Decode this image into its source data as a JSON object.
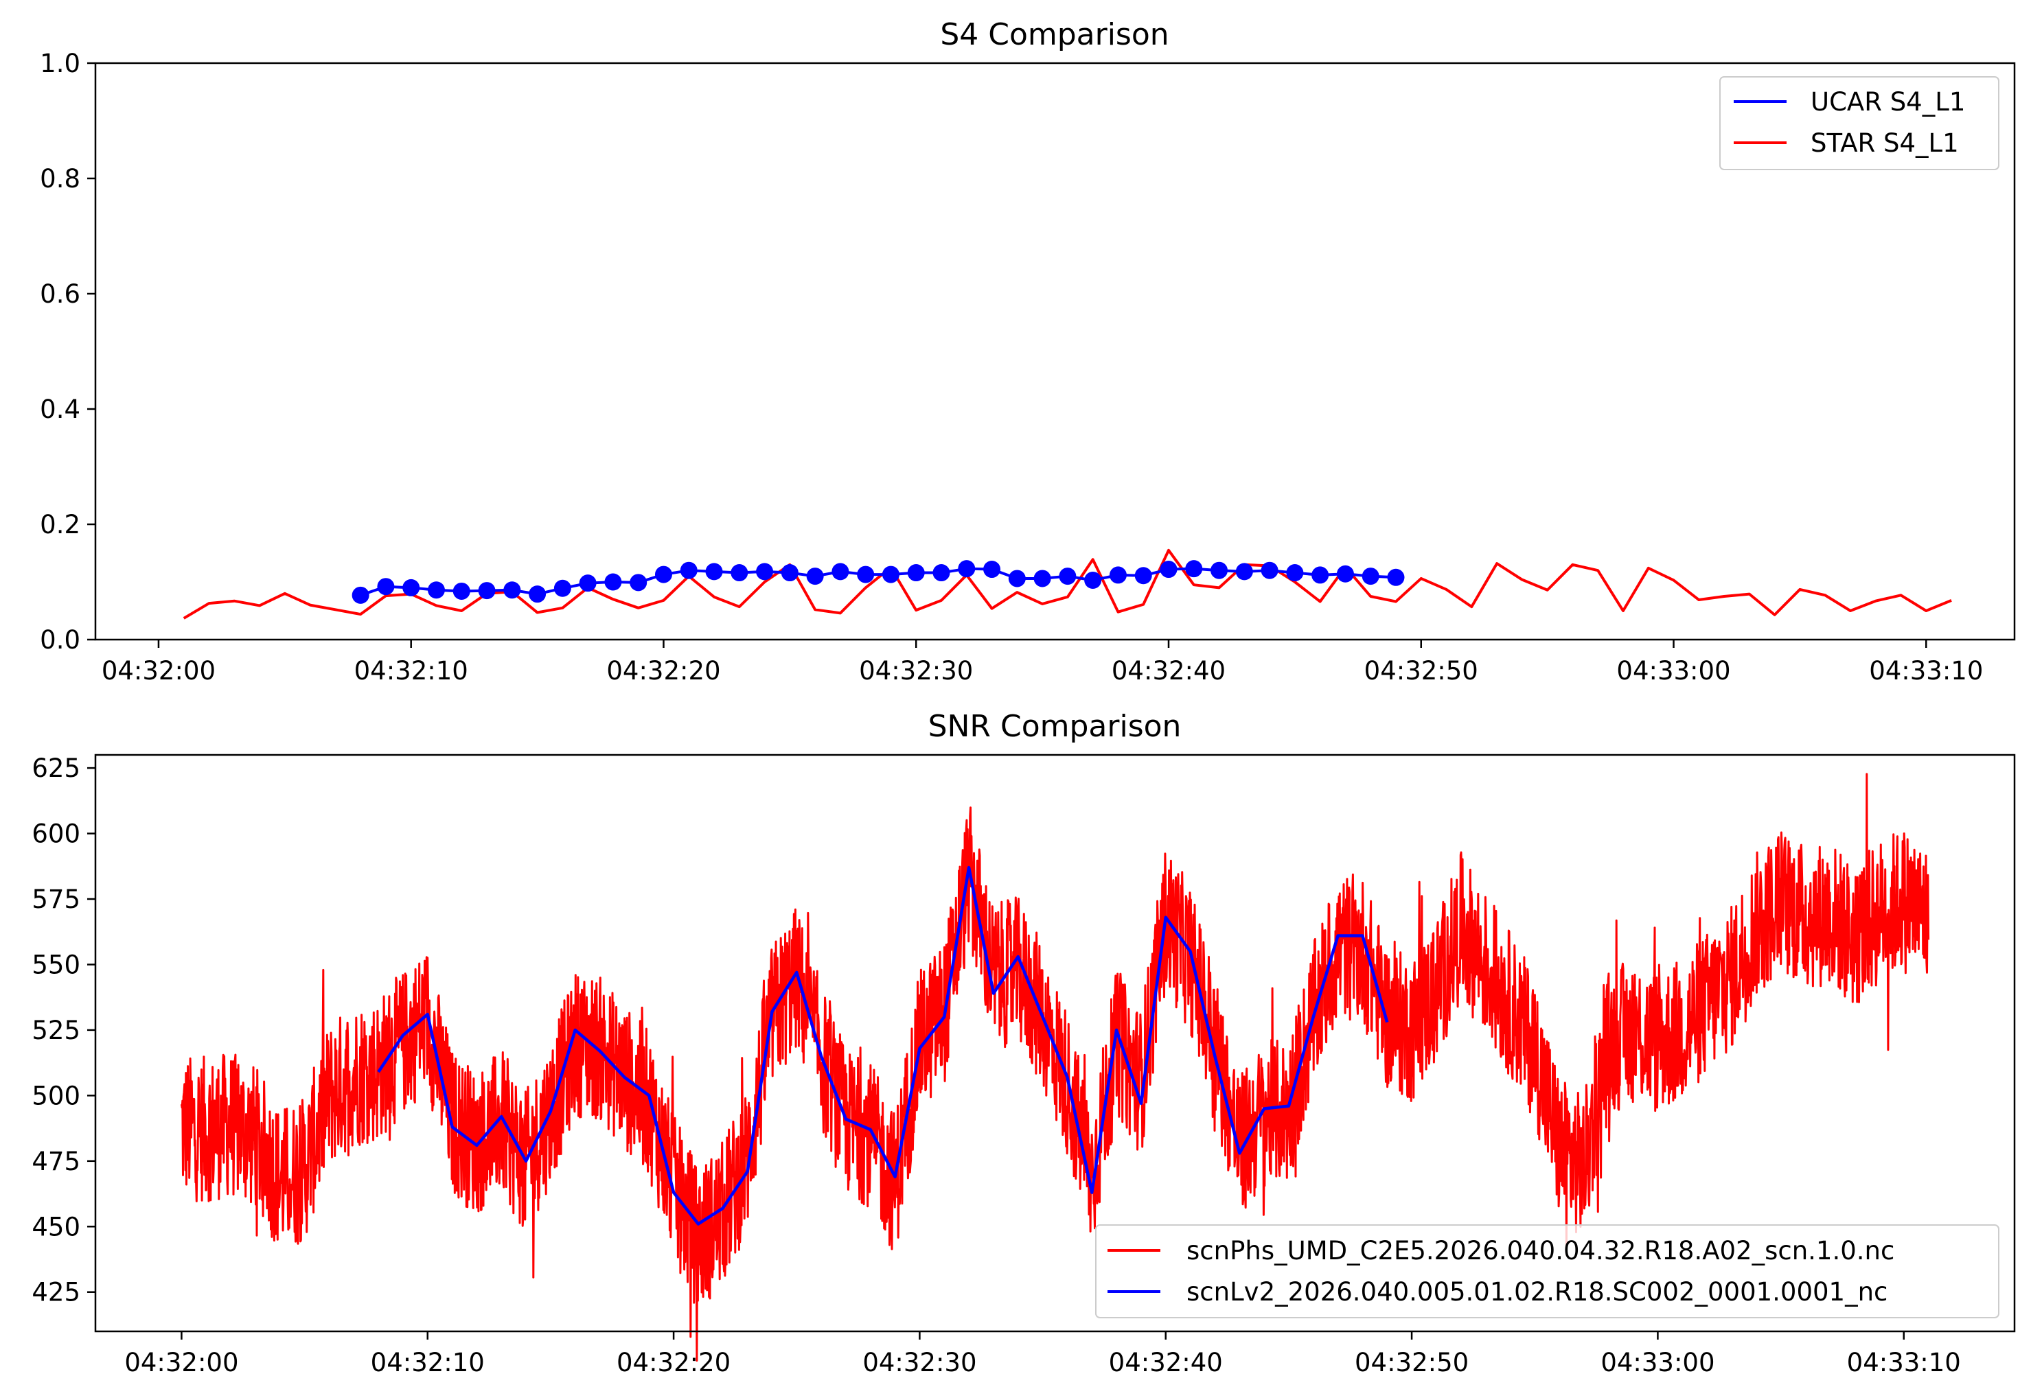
{
  "chart_data": [
    {
      "type": "line",
      "title": "S4 Comparison",
      "xlabel": "",
      "ylabel": "",
      "x_unit": "seconds after 04:32:00",
      "xlim": [
        -2.5,
        73.5
      ],
      "ylim": [
        0.0,
        1.0
      ],
      "x_ticks": [
        0,
        10,
        20,
        30,
        40,
        50,
        60,
        70
      ],
      "x_tick_labels": [
        "04:32:00",
        "04:32:10",
        "04:32:20",
        "04:32:30",
        "04:32:40",
        "04:32:50",
        "04:33:00",
        "04:33:10"
      ],
      "y_ticks": [
        0.0,
        0.2,
        0.4,
        0.6,
        0.8,
        1.0
      ],
      "y_tick_labels": [
        "0.0",
        "0.2",
        "0.4",
        "0.6",
        "0.8",
        "1.0"
      ],
      "legend_position": "top-right",
      "series": [
        {
          "name": "UCAR S4_L1",
          "color": "#0000ff",
          "style": "line-with-circle-markers",
          "x": [
            8,
            9,
            10,
            11,
            12,
            13,
            14,
            15,
            16,
            17,
            18,
            19,
            20,
            21,
            22,
            23,
            24,
            25,
            26,
            27,
            28,
            29,
            30,
            31,
            32,
            33,
            34,
            35,
            36,
            37,
            38,
            39,
            40,
            41,
            42,
            43,
            44,
            45,
            46,
            47,
            48,
            49
          ],
          "values": [
            0.077,
            0.092,
            0.09,
            0.086,
            0.084,
            0.085,
            0.086,
            0.079,
            0.089,
            0.098,
            0.1,
            0.099,
            0.113,
            0.12,
            0.118,
            0.116,
            0.118,
            0.116,
            0.11,
            0.118,
            0.113,
            0.113,
            0.116,
            0.116,
            0.123,
            0.122,
            0.106,
            0.106,
            0.11,
            0.103,
            0.112,
            0.111,
            0.122,
            0.123,
            0.12,
            0.118,
            0.12,
            0.116,
            0.112,
            0.114,
            0.11,
            0.108
          ]
        },
        {
          "name": "STAR S4_L1",
          "color": "#ff0000",
          "style": "line",
          "x": [
            1,
            2,
            3,
            4,
            5,
            6,
            7,
            8,
            9,
            10,
            11,
            12,
            13,
            14,
            15,
            16,
            17,
            18,
            19,
            20,
            21,
            22,
            23,
            24,
            25,
            26,
            27,
            28,
            29,
            30,
            31,
            32,
            33,
            34,
            35,
            36,
            37,
            38,
            39,
            40,
            41,
            42,
            43,
            44,
            45,
            46,
            47,
            48,
            49,
            50,
            51,
            52,
            53,
            54,
            55,
            56,
            57,
            58,
            59,
            60,
            61,
            62,
            63,
            64,
            65,
            66,
            67,
            68,
            69,
            70,
            71
          ],
          "values": [
            0.037,
            0.063,
            0.067,
            0.059,
            0.08,
            0.06,
            0.052,
            0.044,
            0.076,
            0.079,
            0.059,
            0.05,
            0.08,
            0.083,
            0.047,
            0.055,
            0.09,
            0.07,
            0.055,
            0.068,
            0.11,
            0.074,
            0.057,
            0.1,
            0.13,
            0.052,
            0.046,
            0.09,
            0.125,
            0.051,
            0.068,
            0.112,
            0.054,
            0.082,
            0.062,
            0.074,
            0.139,
            0.048,
            0.061,
            0.155,
            0.095,
            0.09,
            0.13,
            0.128,
            0.1,
            0.066,
            0.126,
            0.075,
            0.066,
            0.106,
            0.087,
            0.057,
            0.132,
            0.104,
            0.086,
            0.13,
            0.12,
            0.05,
            0.124,
            0.103,
            0.069,
            0.075,
            0.079,
            0.043,
            0.087,
            0.077,
            0.05,
            0.067,
            0.077,
            0.05,
            0.068
          ]
        }
      ]
    },
    {
      "type": "line",
      "title": "SNR Comparison",
      "xlabel": "",
      "ylabel": "",
      "x_unit": "seconds after 04:32:00",
      "xlim": [
        -3.5,
        74.5
      ],
      "ylim": [
        410,
        630
      ],
      "x_ticks": [
        0,
        10,
        20,
        30,
        40,
        50,
        60,
        70
      ],
      "x_tick_labels": [
        "04:32:00",
        "04:32:10",
        "04:32:20",
        "04:32:30",
        "04:32:40",
        "04:32:50",
        "04:33:00",
        "04:33:10"
      ],
      "y_ticks": [
        425,
        450,
        475,
        500,
        525,
        550,
        575,
        600,
        625
      ],
      "y_tick_labels": [
        "425",
        "450",
        "475",
        "500",
        "525",
        "550",
        "575",
        "600",
        "625"
      ],
      "legend_position": "lower-right",
      "noise_note": "red trace is a dense high-rate series drawn as a noisy band around the listed envelope points",
      "series": [
        {
          "name": "scnPhs_UMD_C2E5.2026.040.04.32.R18.A02_scn.1.0.nc",
          "color": "#ff0000",
          "style": "dense-line",
          "x": [
            0,
            1,
            2,
            3,
            4,
            5,
            6,
            7,
            8,
            9,
            10,
            11,
            12,
            13,
            14,
            15,
            16,
            17,
            18,
            19,
            20,
            21,
            22,
            23,
            24,
            25,
            26,
            27,
            28,
            29,
            30,
            31,
            32,
            33,
            34,
            35,
            36,
            37,
            38,
            39,
            40,
            41,
            42,
            43,
            44,
            45,
            46,
            47,
            48,
            49,
            50,
            51,
            52,
            53,
            54,
            55,
            56,
            57,
            58,
            59,
            60,
            61,
            62,
            63,
            64,
            65,
            66,
            67,
            68,
            69,
            70,
            71
          ],
          "values": [
            488,
            487,
            489,
            484,
            468,
            472,
            500,
            508,
            510,
            520,
            530,
            490,
            482,
            490,
            474,
            494,
            520,
            518,
            507,
            497,
            465,
            445,
            455,
            476,
            530,
            545,
            515,
            490,
            485,
            466,
            520,
            532,
            585,
            545,
            548,
            530,
            505,
            468,
            520,
            505,
            568,
            552,
            520,
            480,
            493,
            494,
            530,
            557,
            556,
            530,
            525,
            540,
            565,
            550,
            535,
            518,
            480,
            472,
            520,
            525,
            520,
            525,
            535,
            545,
            565,
            575,
            568,
            570,
            560,
            570,
            575,
            568
          ],
          "noise_amplitude": 28
        },
        {
          "name": "scnLv2_2026.040.005.01.02.R18.SC002_0001.0001_nc",
          "color": "#0000ff",
          "style": "line",
          "x": [
            8,
            9,
            10,
            11,
            12,
            13,
            14,
            15,
            16,
            17,
            18,
            19,
            20,
            21,
            22,
            23,
            24,
            25,
            26,
            27,
            28,
            29,
            30,
            31,
            32,
            33,
            34,
            35,
            36,
            37,
            38,
            39,
            40,
            41,
            42,
            43,
            44,
            45,
            46,
            47,
            48,
            49
          ],
          "values": [
            509,
            523,
            531,
            488,
            481,
            492,
            475,
            494,
            525,
            517,
            507,
            500,
            463,
            451,
            457,
            471,
            532,
            547,
            515,
            491,
            487,
            469,
            518,
            530,
            587,
            539,
            553,
            530,
            507,
            463,
            525,
            497,
            568,
            555,
            515,
            478,
            495,
            496,
            530,
            561,
            561,
            528
          ]
        }
      ]
    }
  ]
}
